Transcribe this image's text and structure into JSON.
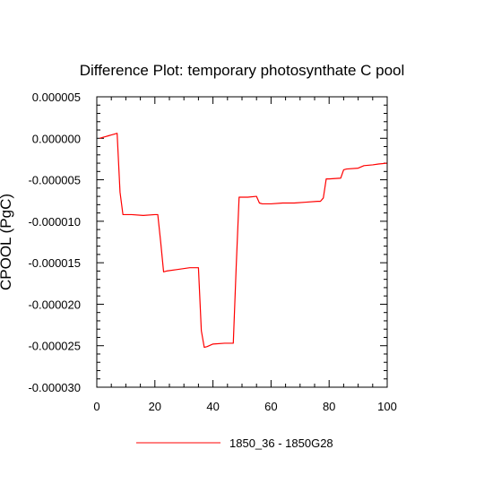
{
  "chart_data": {
    "type": "line",
    "title": "Difference Plot: temporary photosynthate C pool",
    "xlabel": "",
    "ylabel": "CPOOL  (PgC)",
    "xlim": [
      0,
      100
    ],
    "ylim": [
      -3e-05,
      5e-06
    ],
    "x_ticks": [
      "0",
      "20",
      "40",
      "60",
      "80",
      "100"
    ],
    "y_ticks": [
      "0.000005",
      "0.000000",
      "-0.000005",
      "-0.000010",
      "-0.000015",
      "-0.000020",
      "-0.000025",
      "-0.000030"
    ],
    "grid": false,
    "legend_position": "bottom-center",
    "series": [
      {
        "name": "1850_36 - 1850G28",
        "color": "#ff0000",
        "x": [
          1,
          2,
          3,
          4,
          5,
          6,
          7,
          8,
          9,
          12,
          16,
          20,
          21,
          22,
          23,
          24,
          28,
          32,
          35,
          36,
          37,
          38,
          40,
          44,
          47,
          48,
          49,
          52,
          55,
          56,
          57,
          60,
          64,
          68,
          72,
          76,
          77,
          78,
          79,
          80,
          84,
          85,
          86,
          90,
          92,
          95,
          97,
          100
        ],
        "y": [
          0.0,
          1e-07,
          2e-07,
          3e-07,
          4e-07,
          5e-07,
          6e-07,
          -6.5e-06,
          -9.2e-06,
          -9.2e-06,
          -9.3e-06,
          -9.2e-06,
          -9.2e-06,
          -1.25e-05,
          -1.61e-05,
          -1.6e-05,
          -1.58e-05,
          -1.56e-05,
          -1.56e-05,
          -2.32e-05,
          -2.52e-05,
          -2.51e-05,
          -2.48e-05,
          -2.47e-05,
          -2.47e-05,
          -1.55e-05,
          -7.1e-06,
          -7.1e-06,
          -7e-06,
          -7.8e-06,
          -7.9e-06,
          -7.9e-06,
          -7.8e-06,
          -7.8e-06,
          -7.7e-06,
          -7.6e-06,
          -7.6e-06,
          -7.2e-06,
          -4.9e-06,
          -4.9e-06,
          -4.8e-06,
          -3.8e-06,
          -3.7e-06,
          -3.6e-06,
          -3.3e-06,
          -3.2e-06,
          -3.1e-06,
          -3e-06
        ]
      }
    ]
  }
}
